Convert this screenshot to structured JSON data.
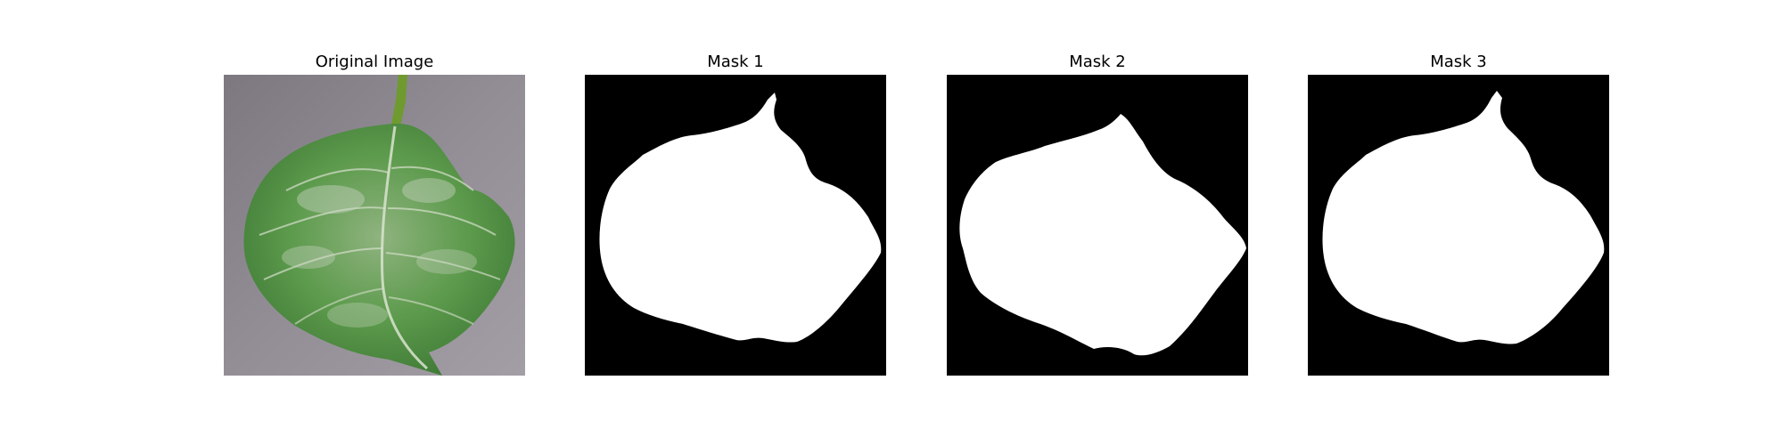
{
  "figure": {
    "panels": [
      {
        "title": "Original Image"
      },
      {
        "title": "Mask 1"
      },
      {
        "title": "Mask 2"
      },
      {
        "title": "Mask 3"
      }
    ]
  },
  "colors": {
    "background": "#ffffff",
    "mask_background": "#000000",
    "mask_foreground": "#ffffff",
    "photo_backdrop": "#8f8a91",
    "leaf_green": "#4f8f44",
    "leaf_highlight": "#cfd8c8",
    "stem": "#6f9a2f"
  }
}
